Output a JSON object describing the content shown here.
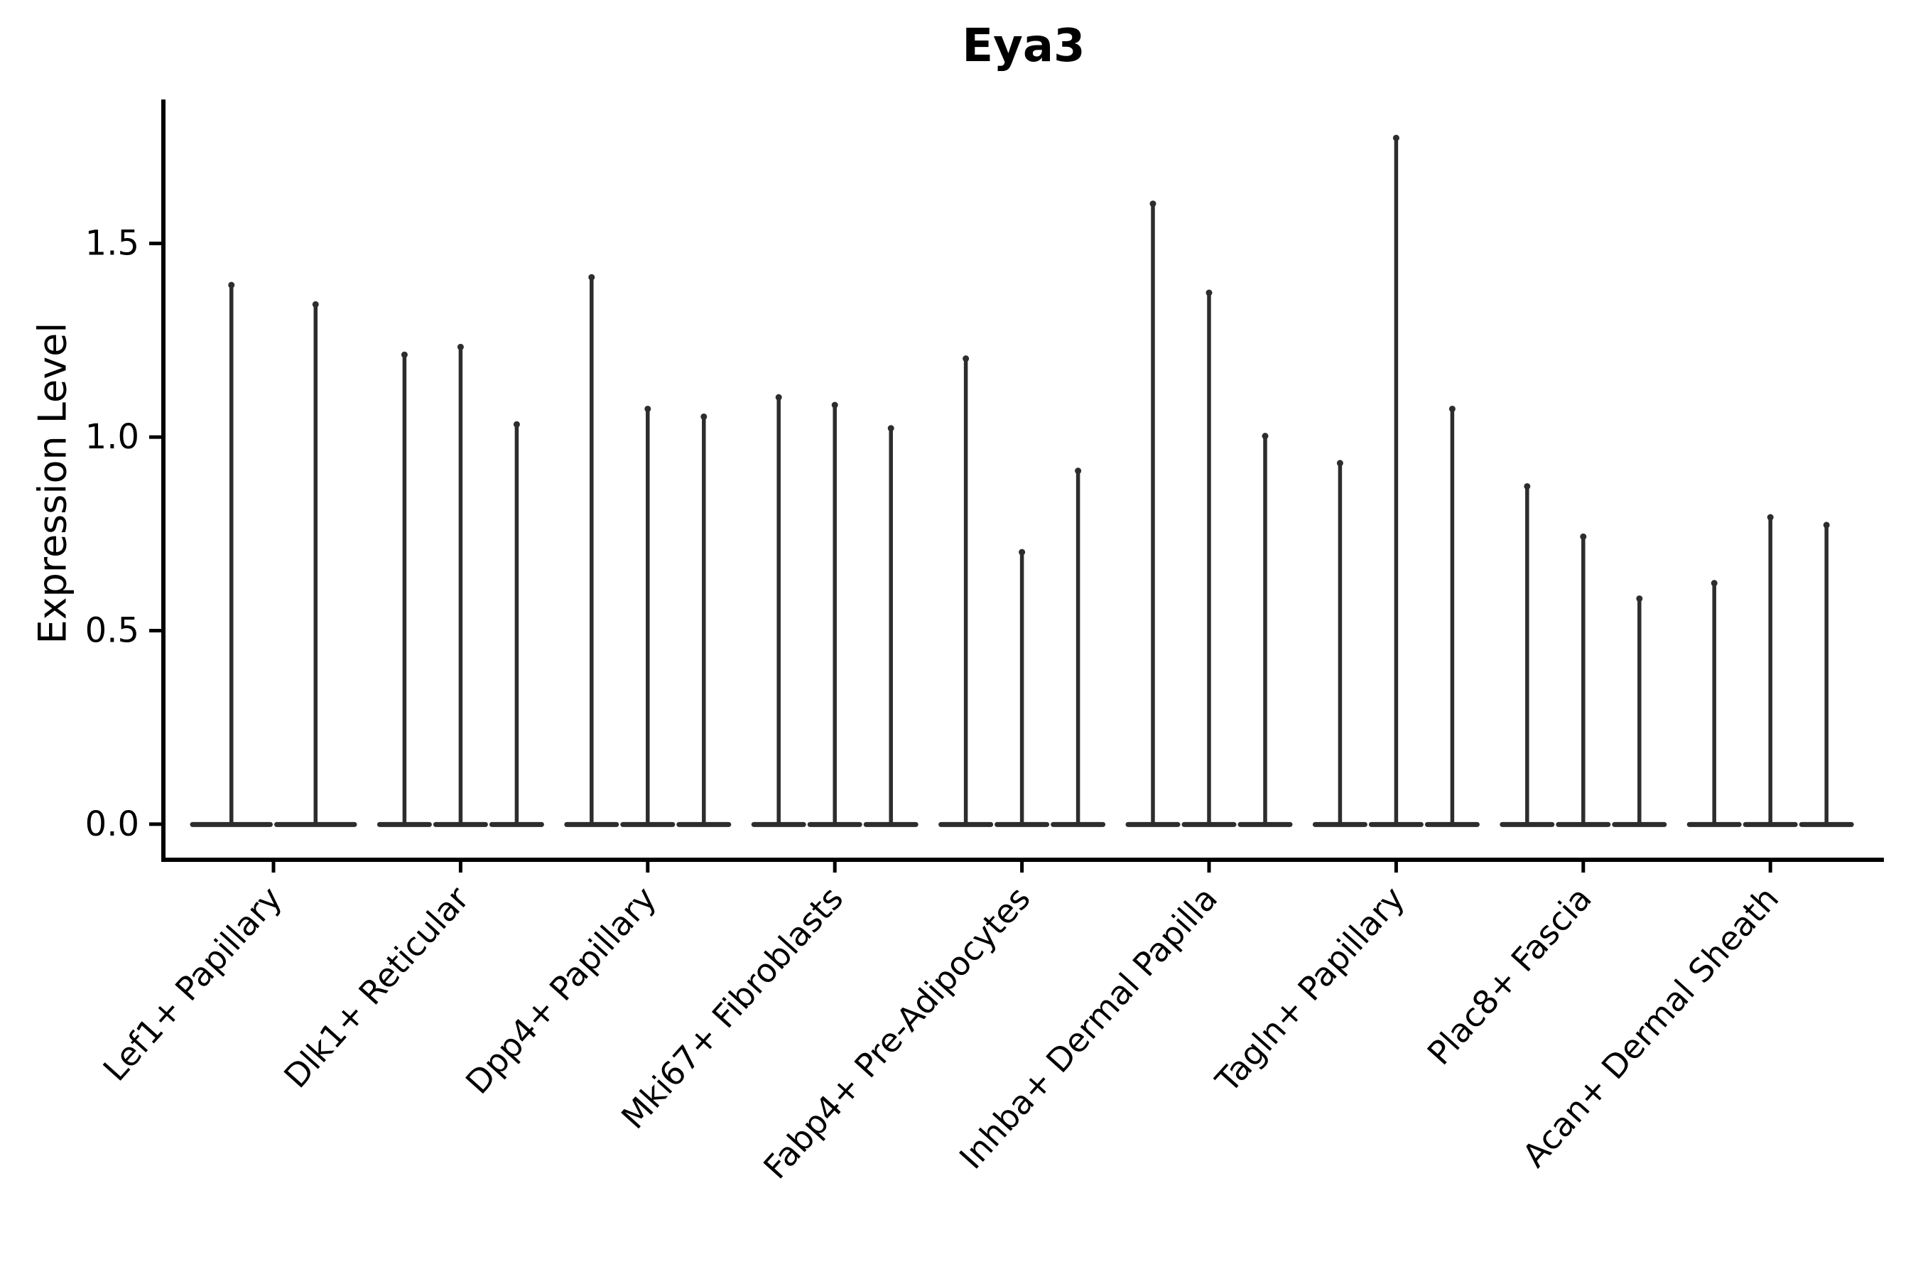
{
  "chart_data": {
    "type": "violin",
    "title": "Eya3",
    "ylabel": "Expression Level",
    "xlabel": "",
    "yticks": [
      0.0,
      0.5,
      1.0,
      1.5
    ],
    "ytick_labels": [
      "0.0",
      "0.5",
      "1.0",
      "1.5"
    ],
    "ylim": [
      -0.092,
      1.872
    ],
    "grid": false,
    "legend": "none",
    "style_note": "needle-thin violins: wide flat base at expression 0 with a thin vertical density spike up to the max expression value",
    "categories": [
      "Lef1+ Papillary",
      "Dlk1+ Reticular",
      "Dpp4+ Papillary",
      "Mki67+ Fibroblasts",
      "Fabp4+ Pre-Adipocytes",
      "Inhba+ Dermal Papilla",
      "Tagln+ Papillary",
      "Plac8+ Fascia",
      "Acan+ Dermal Sheath"
    ],
    "groups": [
      {
        "label": "Lef1+ Papillary",
        "violin_max_values": [
          1.4,
          1.35
        ]
      },
      {
        "label": "Dlk1+ Reticular",
        "violin_max_values": [
          1.22,
          1.24,
          1.04
        ]
      },
      {
        "label": "Dpp4+ Papillary",
        "violin_max_values": [
          1.42,
          1.08,
          1.06
        ]
      },
      {
        "label": "Mki67+ Fibroblasts",
        "violin_max_values": [
          1.11,
          1.09,
          1.03
        ]
      },
      {
        "label": "Fabp4+ Pre-Adipocytes",
        "violin_max_values": [
          1.21,
          0.71,
          0.92
        ]
      },
      {
        "label": "Inhba+ Dermal Papilla",
        "violin_max_values": [
          1.61,
          1.38,
          1.01
        ]
      },
      {
        "label": "Tagln+ Papillary",
        "violin_max_values": [
          0.94,
          1.78,
          1.08
        ]
      },
      {
        "label": "Plac8+ Fascia",
        "violin_max_values": [
          0.88,
          0.75,
          0.59
        ]
      },
      {
        "label": "Acan+ Dermal Sheath",
        "violin_max_values": [
          0.63,
          0.8,
          0.78
        ]
      }
    ],
    "colors": {
      "violin": "#2d2d2d",
      "axis": "#000000",
      "text": "#000000",
      "background": "#ffffff"
    }
  }
}
